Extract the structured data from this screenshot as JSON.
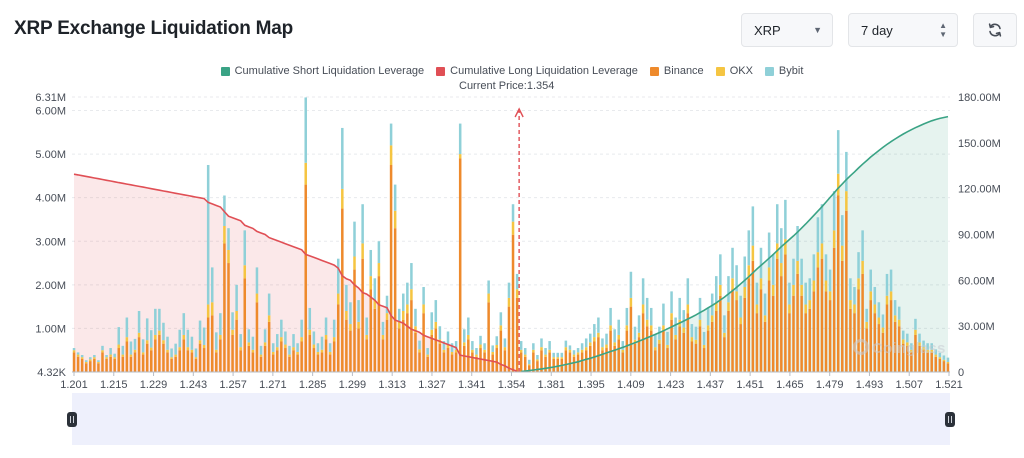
{
  "header": {
    "title": "XRP Exchange Liquidation Map",
    "coin_select": "XRP",
    "range_select": "7 day",
    "refresh_icon": "refresh-icon"
  },
  "legend": [
    {
      "label": "Cumulative Short Liquidation Leverage",
      "color": "#3aa385"
    },
    {
      "label": "Cumulative Long Liquidation Leverage",
      "color": "#e04f55"
    },
    {
      "label": "Binance",
      "color": "#ee8a2c"
    },
    {
      "label": "OKX",
      "color": "#f5c542"
    },
    {
      "label": "Bybit",
      "color": "#8fd0d8"
    }
  ],
  "current_price_label": "Current Price:1.354",
  "watermark": "Coinglass",
  "chart_data": {
    "type": "bar",
    "title": "XRP Exchange Liquidation Map",
    "current_price": 1.354,
    "x_tick_labels": [
      "1.201",
      "1.215",
      "1.229",
      "1.243",
      "1.257",
      "1.271",
      "1.285",
      "1.299",
      "1.313",
      "1.327",
      "1.341",
      "1.354",
      "1.381",
      "1.395",
      "1.409",
      "1.423",
      "1.437",
      "1.451",
      "1.465",
      "1.479",
      "1.493",
      "1.507",
      "1.521"
    ],
    "y_left_ticks": [
      "4.32K",
      "1.00M",
      "2.00M",
      "3.00M",
      "4.00M",
      "5.00M",
      "6.00M",
      "6.31M"
    ],
    "y_left_values": [
      0.00432,
      1,
      2,
      3,
      4,
      5,
      6,
      6.31
    ],
    "y_left_range": [
      0,
      6.31
    ],
    "y_right_ticks": [
      "0",
      "30.00M",
      "60.00M",
      "90.00M",
      "120.00M",
      "150.00M",
      "180.00M"
    ],
    "y_right_values": [
      0,
      30,
      60,
      90,
      120,
      150,
      180
    ],
    "y_right_range": [
      0,
      180
    ],
    "colors": {
      "binance": "#ee8a2c",
      "okx": "#f5c542",
      "bybit": "#8fd0d8",
      "short": "#3aa385",
      "long": "#e04f55",
      "grid": "#e8eaed",
      "axis_text": "#474d57",
      "current": "#e04f55"
    },
    "binance": [
      0.45,
      0.35,
      0.3,
      0.2,
      0.25,
      0.3,
      0.2,
      0.45,
      0.3,
      0.35,
      0.3,
      0.55,
      0.35,
      0.7,
      0.35,
      0.45,
      0.8,
      0.4,
      0.65,
      0.5,
      0.75,
      0.85,
      0.65,
      0.45,
      0.3,
      0.35,
      0.5,
      0.75,
      0.5,
      0.45,
      0.3,
      0.65,
      0.55,
      1.25,
      1.3,
      0.45,
      0.75,
      2.95,
      2.5,
      0.85,
      1.2,
      0.5,
      2.15,
      0.6,
      0.45,
      1.6,
      0.35,
      0.6,
      1.15,
      0.4,
      0.5,
      0.7,
      0.55,
      0.35,
      0.5,
      0.4,
      0.7,
      4.3,
      0.85,
      0.55,
      0.4,
      0.45,
      0.75,
      0.4,
      0.7,
      1.55,
      3.75,
      1.2,
      0.95,
      2.35,
      1.0,
      2.6,
      0.75,
      1.9,
      1.45,
      2.2,
      0.75,
      1.2,
      4.75,
      3.3,
      1.0,
      1.2,
      1.35,
      1.65,
      0.9,
      0.45,
      1.35,
      0.35,
      0.85,
      1.0,
      0.65,
      0.45,
      0.55,
      0.4,
      0.45,
      4.9,
      0.6,
      0.75,
      0.45,
      0.35,
      0.55,
      0.45,
      1.6,
      0.4,
      0.55,
      0.95,
      0.5,
      1.5,
      3.15,
      1.7,
      0.45,
      0.35,
      0.15,
      0.45,
      0.25,
      0.5,
      0.35,
      0.45,
      0.3,
      0.3,
      0.3,
      0.5,
      0.45,
      0.35,
      0.4,
      0.45,
      0.5,
      0.6,
      0.7,
      0.8,
      0.5,
      0.55,
      0.95,
      0.6,
      0.75,
      0.45,
      0.95,
      1.5,
      0.65,
      0.8,
      1.35,
      1.05,
      0.95,
      0.5,
      0.65,
      0.95,
      0.55,
      1.2,
      0.75,
      1.05,
      0.9,
      1.35,
      0.7,
      0.65,
      1.05,
      0.55,
      0.95,
      1.15,
      1.4,
      1.75,
      0.8,
      1.4,
      1.9,
      1.65,
      1.1,
      1.7,
      2.15,
      2.55,
      1.35,
      1.9,
      1.15,
      2.1,
      1.75,
      2.6,
      2.2,
      2.7,
      1.35,
      1.75,
      2.25,
      1.75,
      1.35,
      1.45,
      1.85,
      2.4,
      2.6,
      1.85,
      1.65,
      2.85,
      4.05,
      2.55,
      3.7,
      1.45,
      1.35,
      1.9,
      2.25,
      1.0,
      1.65,
      1.35,
      1.1,
      0.9,
      1.55,
      1.65,
      1.15,
      1.05,
      0.65,
      0.6,
      0.45,
      0.85,
      0.6,
      0.5,
      0.45,
      0.45,
      0.35,
      0.3,
      0.25,
      0.2
    ],
    "okx": [
      0.05,
      0.05,
      0.04,
      0.03,
      0.04,
      0.04,
      0.03,
      0.05,
      0.04,
      0.05,
      0.04,
      0.08,
      0.05,
      0.1,
      0.05,
      0.06,
      0.1,
      0.05,
      0.08,
      0.06,
      0.1,
      0.1,
      0.08,
      0.06,
      0.04,
      0.05,
      0.07,
      0.1,
      0.07,
      0.06,
      0.04,
      0.08,
      0.07,
      0.3,
      0.3,
      0.06,
      0.1,
      0.4,
      0.3,
      0.12,
      0.2,
      0.07,
      0.3,
      0.08,
      0.06,
      0.2,
      0.05,
      0.08,
      0.15,
      0.06,
      0.07,
      0.1,
      0.08,
      0.05,
      0.07,
      0.06,
      0.1,
      0.5,
      0.12,
      0.08,
      0.06,
      0.06,
      0.1,
      0.06,
      0.1,
      0.25,
      0.45,
      0.2,
      0.15,
      0.3,
      0.15,
      0.35,
      0.1,
      0.3,
      0.2,
      0.3,
      0.1,
      0.15,
      0.45,
      0.4,
      0.15,
      0.2,
      0.2,
      0.25,
      0.15,
      0.07,
      0.2,
      0.05,
      0.12,
      0.15,
      0.1,
      0.06,
      0.08,
      0.06,
      0.06,
      0.1,
      0.08,
      0.1,
      0.06,
      0.05,
      0.08,
      0.06,
      0.2,
      0.06,
      0.07,
      0.12,
      0.07,
      0.2,
      0.3,
      0.2,
      0.06,
      0.05,
      0.03,
      0.06,
      0.04,
      0.07,
      0.05,
      0.06,
      0.04,
      0.04,
      0.04,
      0.07,
      0.06,
      0.05,
      0.05,
      0.06,
      0.07,
      0.08,
      0.1,
      0.1,
      0.07,
      0.08,
      0.12,
      0.08,
      0.1,
      0.06,
      0.12,
      0.2,
      0.09,
      0.1,
      0.2,
      0.15,
      0.12,
      0.07,
      0.09,
      0.12,
      0.07,
      0.15,
      0.1,
      0.15,
      0.12,
      0.2,
      0.1,
      0.09,
      0.15,
      0.07,
      0.12,
      0.15,
      0.2,
      0.25,
      0.1,
      0.2,
      0.25,
      0.2,
      0.15,
      0.25,
      0.3,
      0.35,
      0.2,
      0.25,
      0.15,
      0.3,
      0.25,
      0.35,
      0.3,
      0.35,
      0.2,
      0.25,
      0.3,
      0.25,
      0.2,
      0.2,
      0.25,
      0.35,
      0.35,
      0.25,
      0.2,
      0.4,
      0.5,
      0.35,
      0.45,
      0.2,
      0.2,
      0.25,
      0.3,
      0.15,
      0.2,
      0.2,
      0.15,
      0.12,
      0.2,
      0.2,
      0.15,
      0.15,
      0.1,
      0.08,
      0.06,
      0.12,
      0.08,
      0.07,
      0.06,
      0.06,
      0.05,
      0.04,
      0.03,
      0.03
    ],
    "bybit": [
      0.05,
      0.05,
      0.05,
      0.04,
      0.05,
      0.05,
      0.04,
      0.1,
      0.05,
      0.15,
      0.08,
      0.4,
      0.2,
      0.45,
      0.3,
      0.25,
      0.5,
      0.3,
      0.5,
      0.4,
      0.6,
      0.5,
      0.4,
      0.3,
      0.2,
      0.25,
      0.4,
      0.5,
      0.4,
      0.3,
      0.2,
      0.45,
      0.4,
      3.2,
      0.8,
      0.4,
      0.5,
      0.7,
      0.5,
      0.4,
      0.6,
      0.3,
      0.8,
      0.3,
      0.3,
      0.6,
      0.2,
      0.3,
      0.5,
      0.2,
      0.3,
      0.4,
      0.3,
      0.2,
      0.3,
      0.2,
      0.4,
      1.5,
      0.5,
      0.3,
      0.2,
      0.3,
      0.4,
      0.2,
      0.4,
      0.8,
      1.4,
      0.6,
      0.5,
      0.8,
      0.5,
      0.9,
      0.4,
      0.6,
      0.5,
      0.5,
      0.3,
      0.4,
      0.5,
      0.6,
      0.3,
      0.4,
      0.5,
      0.6,
      0.4,
      0.2,
      0.4,
      0.15,
      0.4,
      0.5,
      0.3,
      0.2,
      0.3,
      0.2,
      0.2,
      0.7,
      0.3,
      0.4,
      0.2,
      0.15,
      0.2,
      0.15,
      0.3,
      0.15,
      0.2,
      0.3,
      0.2,
      0.35,
      0.4,
      0.35,
      0.2,
      0.15,
      0.1,
      0.15,
      0.1,
      0.2,
      0.15,
      0.2,
      0.1,
      0.1,
      0.1,
      0.15,
      0.1,
      0.1,
      0.1,
      0.15,
      0.2,
      0.2,
      0.3,
      0.35,
      0.2,
      0.25,
      0.4,
      0.3,
      0.35,
      0.2,
      0.4,
      0.6,
      0.3,
      0.4,
      0.6,
      0.5,
      0.4,
      0.3,
      0.3,
      0.5,
      0.3,
      0.5,
      0.4,
      0.5,
      0.4,
      0.6,
      0.3,
      0.3,
      0.5,
      0.3,
      0.4,
      0.5,
      0.6,
      0.7,
      0.4,
      0.6,
      0.7,
      0.6,
      0.5,
      0.7,
      0.8,
      0.9,
      0.5,
      0.7,
      0.5,
      0.8,
      0.7,
      0.9,
      0.8,
      0.9,
      0.5,
      0.6,
      0.8,
      0.6,
      0.5,
      0.5,
      0.6,
      0.8,
      0.9,
      0.6,
      0.5,
      0.9,
      1.0,
      0.7,
      0.9,
      0.5,
      0.4,
      0.6,
      0.7,
      0.3,
      0.5,
      0.4,
      0.35,
      0.3,
      0.5,
      0.5,
      0.35,
      0.3,
      0.2,
      0.2,
      0.15,
      0.25,
      0.2,
      0.15,
      0.15,
      0.15,
      0.12,
      0.1,
      0.1,
      0.1
    ],
    "long_cumulative": [
      129.5,
      129,
      128.5,
      128,
      127.5,
      127,
      126.5,
      126,
      125.5,
      125,
      124.5,
      124,
      123.5,
      123,
      122.5,
      122,
      121.5,
      121,
      120.5,
      120,
      119.5,
      119,
      118.5,
      118,
      117.5,
      117,
      116.5,
      116,
      115.5,
      115,
      114.5,
      114,
      113.5,
      111,
      110,
      109,
      108,
      105,
      102,
      101,
      100,
      99,
      96,
      95,
      94,
      92,
      91,
      90,
      88,
      87,
      86,
      85,
      84,
      83,
      82,
      81,
      80,
      77,
      76,
      75,
      74,
      73,
      72,
      71,
      70,
      68,
      63,
      61,
      60,
      57,
      55,
      52,
      51,
      49,
      47,
      44,
      43,
      42,
      37,
      34,
      33,
      32,
      30,
      28,
      27,
      26,
      24,
      23,
      22,
      21,
      20,
      19,
      18,
      17,
      16,
      11,
      10.5,
      10,
      9.5,
      9,
      8.5,
      8,
      7.5,
      7,
      6.5,
      5,
      4,
      2.5,
      1.5,
      0.5
    ],
    "short_cumulative": [
      0.3,
      0.6,
      1.0,
      1.3,
      1.7,
      2.0,
      2.4,
      2.8,
      3.3,
      3.8,
      4.3,
      4.9,
      5.5,
      6.1,
      6.7,
      7.5,
      8.3,
      9.0,
      9.8,
      10.7,
      11.6,
      12.5,
      13.4,
      14.3,
      15.2,
      16.1,
      17.1,
      18.1,
      19.2,
      20.2,
      21.3,
      22.4,
      23.5,
      24.6,
      25.8,
      27.0,
      28.3,
      29.5,
      30.8,
      32.1,
      33.4,
      34.7,
      36.0,
      37.4,
      38.9,
      40.4,
      42.0,
      43.6,
      45.3,
      47.1,
      49.0,
      51.1,
      53.2,
      55.4,
      57.7,
      60.0,
      62.4,
      64.9,
      67.4,
      69.8,
      72.1,
      74.5,
      76.9,
      79.4,
      82.0,
      84.4,
      86.7,
      89.1,
      91.6,
      94.2,
      96.9,
      99.7,
      102.5,
      105.3,
      108.2,
      111.2,
      114.3,
      117.3,
      120.3,
      123.1,
      125.9,
      128.5,
      131.0,
      133.5,
      136.0,
      138.4,
      140.7,
      142.9,
      145.0,
      147.0,
      149.0,
      150.8,
      152.5,
      154.2,
      155.8,
      157.2,
      158.6,
      159.9,
      161.1,
      162.3,
      163.4,
      164.4,
      165.3,
      166.0,
      166.6,
      167.2
    ]
  }
}
